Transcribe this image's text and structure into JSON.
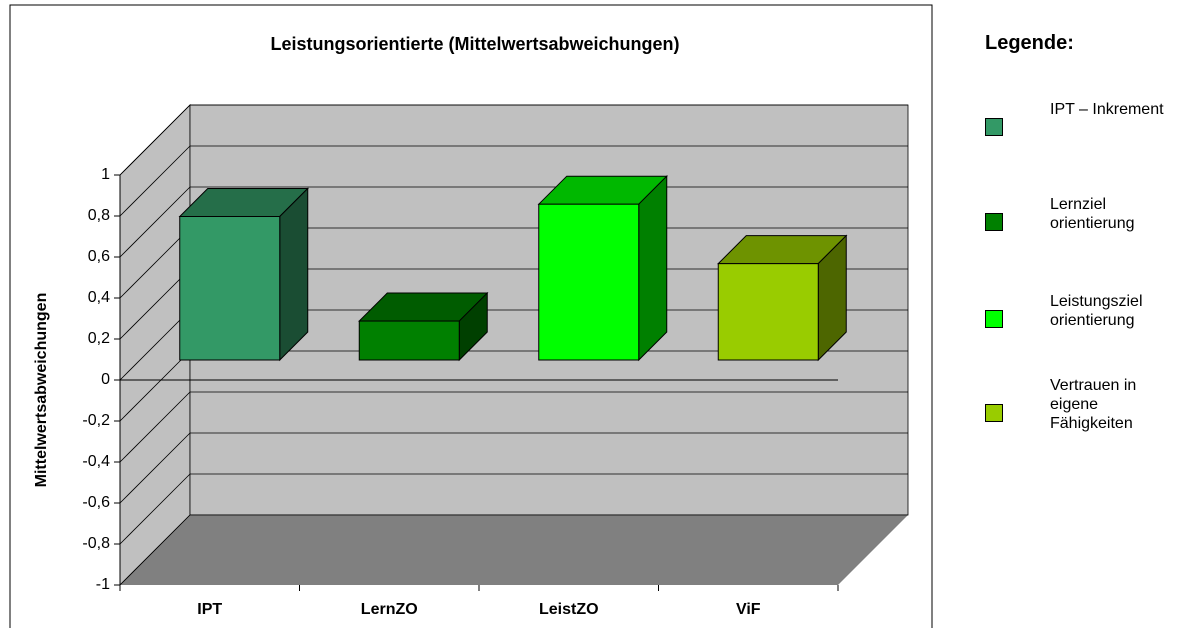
{
  "chart_data": {
    "type": "bar3d",
    "title": "Leistungsorientierte (Mittelwertsabweichungen)",
    "y_label": "Mittelwertsabweichungen",
    "categories": [
      "IPT",
      "LernZO",
      "LeistZO",
      "ViF"
    ],
    "series": [
      {
        "name": "IPT – Inkrement",
        "color": "#339966",
        "values": [
          0.7,
          null,
          null,
          null
        ]
      },
      {
        "name": "Lernziel orientierung",
        "color": "#008000",
        "values": [
          null,
          0.19,
          null,
          null
        ]
      },
      {
        "name": "Leistungsziel orientierung",
        "color": "#00ff00",
        "values": [
          null,
          null,
          0.76,
          null
        ]
      },
      {
        "name": "Vertrauen in eigene Fähigkeiten",
        "color": "#99cc00",
        "values": [
          null,
          null,
          null,
          0.47
        ]
      }
    ],
    "legend_title": "Legende:",
    "ylim": [
      -1,
      1
    ],
    "yticks": [
      -1,
      {
        "value": -0.8,
        "label": "-0,8"
      },
      {
        "value": -0.6,
        "label": "-0,6"
      },
      {
        "value": -0.4,
        "label": "-0,4"
      },
      {
        "value": -0.2,
        "label": "-0,2"
      },
      0,
      {
        "value": 0.2,
        "label": "0,2"
      },
      {
        "value": 0.4,
        "label": "0,4"
      },
      {
        "value": 0.6,
        "label": "0,6"
      },
      {
        "value": 0.8,
        "label": "0,8"
      },
      1
    ],
    "grid": true
  }
}
